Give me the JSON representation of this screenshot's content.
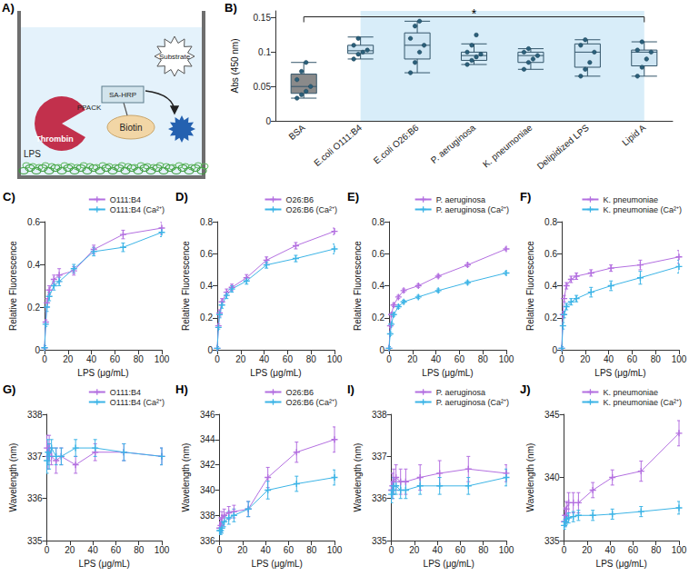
{
  "diagram": {
    "panel": "A)",
    "labels": {
      "substrate": "Substrate",
      "enzyme": "SA-HRP",
      "inhibitor": "PPACK",
      "protease": "Thrombin",
      "tag": "Biotin",
      "surface": "LPS"
    }
  },
  "chart_data": [
    {
      "panel": "B)",
      "type": "boxplot",
      "ylabel": "Abs (450 nm)",
      "categories": [
        "BSA",
        "E.coli O111:B4",
        "E.coli O26:B6",
        "P. aeruginosa",
        "K. pneumoniae",
        "Delipidized LPS",
        "Lipid A"
      ],
      "boxes": [
        [
          0.033,
          0.04,
          0.05,
          0.068,
          0.085
        ],
        [
          0.09,
          0.098,
          0.102,
          0.11,
          0.122
        ],
        [
          0.07,
          0.09,
          0.11,
          0.128,
          0.145
        ],
        [
          0.082,
          0.088,
          0.095,
          0.1,
          0.112
        ],
        [
          0.075,
          0.085,
          0.095,
          0.1,
          0.105
        ],
        [
          0.065,
          0.078,
          0.1,
          0.112,
          0.118
        ],
        [
          0.065,
          0.08,
          0.1,
          0.103,
          0.115
        ]
      ],
      "points": [
        [
          0.033,
          0.038,
          0.043,
          0.05,
          0.06,
          0.072,
          0.085
        ],
        [
          0.09,
          0.097,
          0.1,
          0.103,
          0.11,
          0.12
        ],
        [
          0.07,
          0.085,
          0.1,
          0.11,
          0.12,
          0.138,
          0.145
        ],
        [
          0.082,
          0.088,
          0.093,
          0.097,
          0.1,
          0.11,
          0.125
        ],
        [
          0.075,
          0.085,
          0.09,
          0.095,
          0.1,
          0.105
        ],
        [
          0.065,
          0.075,
          0.085,
          0.1,
          0.11,
          0.118
        ],
        [
          0.065,
          0.078,
          0.09,
          0.1,
          0.103,
          0.115
        ]
      ],
      "colors": [
        "#8a8a8a",
        "#cfe6f4",
        "#cfe6f4",
        "#cfe6f4",
        "#cfe6f4",
        "#cfe6f4",
        "#cfe6f4"
      ],
      "ylim": [
        0,
        0.16
      ],
      "yticks": [
        0,
        0.05,
        0.1,
        0.15
      ],
      "grid": false,
      "annotations": [
        {
          "text": "*",
          "from": "BSA",
          "to": "Lipid A"
        }
      ]
    },
    {
      "panel": "C)",
      "type": "line",
      "xlabel": "LPS (μg/mL)",
      "ylabel": "Relative Fluorescence",
      "marker": "plus",
      "legend": "top",
      "grid": false,
      "x": [
        0,
        1,
        2,
        4,
        8,
        12.5,
        25,
        42,
        67,
        100
      ],
      "xlim": [
        0,
        100
      ],
      "xticks": [
        0,
        20,
        40,
        60,
        80,
        100
      ],
      "ylim": [
        0,
        0.6
      ],
      "yticks": [
        0,
        0.2,
        0.4,
        0.6
      ],
      "series": [
        {
          "name": "O111:B4",
          "color": "#b36fe0",
          "values": [
            0.01,
            0.13,
            0.22,
            0.28,
            0.33,
            0.35,
            0.37,
            0.47,
            0.54,
            0.57
          ],
          "errors": [
            0.01,
            0.01,
            0.02,
            0.02,
            0.02,
            0.03,
            0.02,
            0.02,
            0.02,
            0.03
          ]
        },
        {
          "name": "O111:B4 (Ca²⁺)",
          "color": "#3cb4e6",
          "values": [
            0.01,
            0.12,
            0.2,
            0.25,
            0.3,
            0.32,
            0.38,
            0.46,
            0.48,
            0.55
          ],
          "errors": [
            0.01,
            0.01,
            0.02,
            0.02,
            0.02,
            0.02,
            0.02,
            0.02,
            0.02,
            0.02
          ]
        }
      ]
    },
    {
      "panel": "D)",
      "type": "line",
      "xlabel": "LPS (μg/mL)",
      "ylabel": "Relative Fluorescence",
      "marker": "plus",
      "legend": "top",
      "grid": false,
      "x": [
        0,
        1,
        2,
        4,
        8,
        12.5,
        25,
        42,
        67,
        100
      ],
      "xlim": [
        0,
        100
      ],
      "xticks": [
        0,
        20,
        40,
        60,
        80,
        100
      ],
      "ylim": [
        0,
        0.8
      ],
      "yticks": [
        0,
        0.2,
        0.4,
        0.6,
        0.8
      ],
      "series": [
        {
          "name": "O26:B6",
          "color": "#b36fe0",
          "values": [
            0.01,
            0.15,
            0.23,
            0.3,
            0.36,
            0.39,
            0.45,
            0.56,
            0.65,
            0.74
          ],
          "errors": [
            0.01,
            0.01,
            0.02,
            0.02,
            0.02,
            0.02,
            0.02,
            0.02,
            0.02,
            0.02
          ]
        },
        {
          "name": "O26:B6 (Ca²⁺)",
          "color": "#3cb4e6",
          "values": [
            0.01,
            0.14,
            0.22,
            0.28,
            0.34,
            0.38,
            0.43,
            0.53,
            0.57,
            0.63
          ],
          "errors": [
            0.01,
            0.01,
            0.02,
            0.02,
            0.02,
            0.02,
            0.02,
            0.02,
            0.02,
            0.03
          ]
        }
      ]
    },
    {
      "panel": "E)",
      "type": "line",
      "xlabel": "LPS (μg/mL)",
      "ylabel": "Relative Fluorescence",
      "marker": "plus",
      "legend": "top",
      "grid": false,
      "x": [
        0,
        1,
        2,
        4,
        8,
        12.5,
        25,
        42,
        67,
        100
      ],
      "xlim": [
        0,
        100
      ],
      "xticks": [
        0,
        20,
        40,
        60,
        80,
        100
      ],
      "ylim": [
        0,
        0.8
      ],
      "yticks": [
        0,
        0.2,
        0.4,
        0.6,
        0.8
      ],
      "series": [
        {
          "name": "P. aeruginosa",
          "color": "#b36fe0",
          "values": [
            0.01,
            0.15,
            0.22,
            0.28,
            0.33,
            0.37,
            0.4,
            0.46,
            0.53,
            0.63
          ],
          "errors": [
            0.01,
            0.01,
            0.01,
            0.01,
            0.01,
            0.01,
            0.01,
            0.01,
            0.01,
            0.01
          ]
        },
        {
          "name": "P. aeruginosa (Ca²⁺)",
          "color": "#3cb4e6",
          "values": [
            0.01,
            0.1,
            0.16,
            0.22,
            0.27,
            0.3,
            0.33,
            0.37,
            0.42,
            0.48
          ],
          "errors": [
            0.01,
            0.01,
            0.01,
            0.01,
            0.01,
            0.01,
            0.01,
            0.01,
            0.01,
            0.01
          ]
        }
      ]
    },
    {
      "panel": "F)",
      "type": "line",
      "xlabel": "LPS (μg/mL)",
      "ylabel": "Relative Fluorescence",
      "marker": "plus",
      "legend": "top",
      "grid": false,
      "x": [
        0,
        1,
        2,
        4,
        8,
        12.5,
        25,
        42,
        67,
        100
      ],
      "xlim": [
        0,
        100
      ],
      "xticks": [
        0,
        20,
        40,
        60,
        80,
        100
      ],
      "ylim": [
        0,
        0.8
      ],
      "yticks": [
        0,
        0.2,
        0.4,
        0.6,
        0.8
      ],
      "series": [
        {
          "name": "K. pneumoniae",
          "color": "#b36fe0",
          "values": [
            0.01,
            0.22,
            0.32,
            0.4,
            0.44,
            0.46,
            0.48,
            0.51,
            0.53,
            0.58
          ],
          "errors": [
            0.01,
            0.02,
            0.02,
            0.02,
            0.02,
            0.02,
            0.02,
            0.02,
            0.03,
            0.04
          ]
        },
        {
          "name": "K. pneumoniae (Ca²⁺)",
          "color": "#3cb4e6",
          "values": [
            0.01,
            0.15,
            0.22,
            0.27,
            0.3,
            0.32,
            0.36,
            0.4,
            0.45,
            0.52
          ],
          "errors": [
            0.01,
            0.02,
            0.02,
            0.02,
            0.02,
            0.02,
            0.03,
            0.03,
            0.04,
            0.04
          ]
        }
      ]
    },
    {
      "panel": "G)",
      "type": "line",
      "xlabel": "LPS (μg/mL)",
      "ylabel": "Wavelength (nm)",
      "marker": "plus",
      "legend": "top",
      "grid": false,
      "x": [
        0,
        1,
        2,
        4,
        8,
        12.5,
        25,
        42,
        67,
        100
      ],
      "xlim": [
        0,
        100
      ],
      "xticks": [
        0,
        20,
        40,
        60,
        80,
        100
      ],
      "ylim": [
        335,
        338
      ],
      "yticks": [
        335,
        336,
        337,
        338
      ],
      "series": [
        {
          "name": "O111:B4",
          "color": "#b36fe0",
          "values": [
            337.2,
            337.0,
            337.2,
            337.0,
            336.9,
            337.0,
            336.8,
            337.1,
            337.1,
            337.0
          ],
          "errors": [
            0.3,
            0.3,
            0.3,
            0.2,
            0.3,
            0.2,
            0.2,
            0.2,
            0.2,
            0.2
          ]
        },
        {
          "name": "O111:B4 (Ca²⁺)",
          "color": "#3cb4e6",
          "values": [
            336.9,
            337.1,
            337.0,
            337.2,
            337.0,
            337.0,
            337.2,
            337.2,
            337.1,
            337.0
          ],
          "errors": [
            0.3,
            0.3,
            0.3,
            0.2,
            0.2,
            0.2,
            0.2,
            0.2,
            0.2,
            0.2
          ]
        }
      ]
    },
    {
      "panel": "H)",
      "type": "line",
      "xlabel": "LPS (μg/mL)",
      "ylabel": "Wavelength (nm)",
      "marker": "plus",
      "legend": "top",
      "grid": false,
      "x": [
        0,
        1,
        2,
        4,
        8,
        12.5,
        25,
        42,
        67,
        100
      ],
      "xlim": [
        0,
        100
      ],
      "xticks": [
        0,
        20,
        40,
        60,
        80,
        100
      ],
      "ylim": [
        336,
        346
      ],
      "yticks": [
        336,
        338,
        340,
        342,
        344,
        346
      ],
      "series": [
        {
          "name": "O26:B6",
          "color": "#b36fe0",
          "values": [
            337.0,
            337.2,
            337.8,
            338.0,
            338.2,
            338.3,
            338.5,
            341.0,
            343.0,
            344.0
          ],
          "errors": [
            0.5,
            0.5,
            0.5,
            0.5,
            0.5,
            0.5,
            0.6,
            0.8,
            0.8,
            1.0
          ]
        },
        {
          "name": "O26:B6 (Ca²⁺)",
          "color": "#3cb4e6",
          "values": [
            336.8,
            336.8,
            337.0,
            337.5,
            337.8,
            338.0,
            338.5,
            340.0,
            340.5,
            341.0
          ],
          "errors": [
            0.3,
            0.3,
            0.4,
            0.4,
            0.5,
            0.5,
            0.6,
            0.7,
            0.6,
            0.6
          ]
        }
      ]
    },
    {
      "panel": "I)",
      "type": "line",
      "xlabel": "LPS (μg/mL)",
      "ylabel": "Wavelength (nm)",
      "marker": "plus",
      "legend": "top",
      "grid": false,
      "x": [
        0,
        1,
        2,
        4,
        8,
        12.5,
        25,
        42,
        67,
        100
      ],
      "xlim": [
        0,
        100
      ],
      "xticks": [
        0,
        20,
        40,
        60,
        80,
        100
      ],
      "ylim": [
        335,
        338
      ],
      "yticks": [
        335,
        336,
        337,
        338
      ],
      "series": [
        {
          "name": "P. aeruginosa",
          "color": "#b36fe0",
          "values": [
            336.2,
            336.3,
            336.4,
            336.5,
            336.4,
            336.4,
            336.5,
            336.6,
            336.7,
            336.6
          ],
          "errors": [
            0.2,
            0.3,
            0.3,
            0.3,
            0.3,
            0.3,
            0.3,
            0.3,
            0.3,
            0.2
          ]
        },
        {
          "name": "P. aeruginosa (Ca²⁺)",
          "color": "#3cb4e6",
          "values": [
            336.1,
            336.2,
            336.3,
            336.3,
            336.2,
            336.2,
            336.3,
            336.3,
            336.3,
            336.5
          ],
          "errors": [
            0.2,
            0.2,
            0.2,
            0.2,
            0.2,
            0.2,
            0.2,
            0.2,
            0.2,
            0.2
          ]
        }
      ]
    },
    {
      "panel": "J)",
      "type": "line",
      "xlabel": "LPS (μg/mL)",
      "ylabel": "Wavelength (nm)",
      "marker": "plus",
      "legend": "top",
      "grid": false,
      "x": [
        0,
        1,
        2,
        4,
        8,
        12.5,
        25,
        42,
        67,
        100
      ],
      "xlim": [
        0,
        100
      ],
      "xticks": [
        0,
        20,
        40,
        60,
        80,
        100
      ],
      "ylim": [
        335,
        345
      ],
      "yticks": [
        335,
        340,
        345
      ],
      "series": [
        {
          "name": "K. pneumoniae",
          "color": "#b36fe0",
          "values": [
            336.5,
            337.0,
            337.5,
            338.0,
            338.0,
            338.0,
            339.0,
            340.0,
            340.5,
            343.5
          ],
          "errors": [
            0.4,
            0.6,
            0.6,
            0.8,
            0.8,
            0.8,
            0.6,
            0.6,
            0.8,
            1.0
          ]
        },
        {
          "name": "K. pneumoniae (Ca²⁺)",
          "color": "#3cb4e6",
          "values": [
            336.2,
            336.5,
            336.7,
            336.8,
            336.9,
            337.0,
            337.0,
            337.1,
            337.3,
            337.6
          ],
          "errors": [
            0.3,
            0.4,
            0.4,
            0.4,
            0.4,
            0.4,
            0.4,
            0.4,
            0.4,
            0.5
          ]
        }
      ]
    }
  ]
}
